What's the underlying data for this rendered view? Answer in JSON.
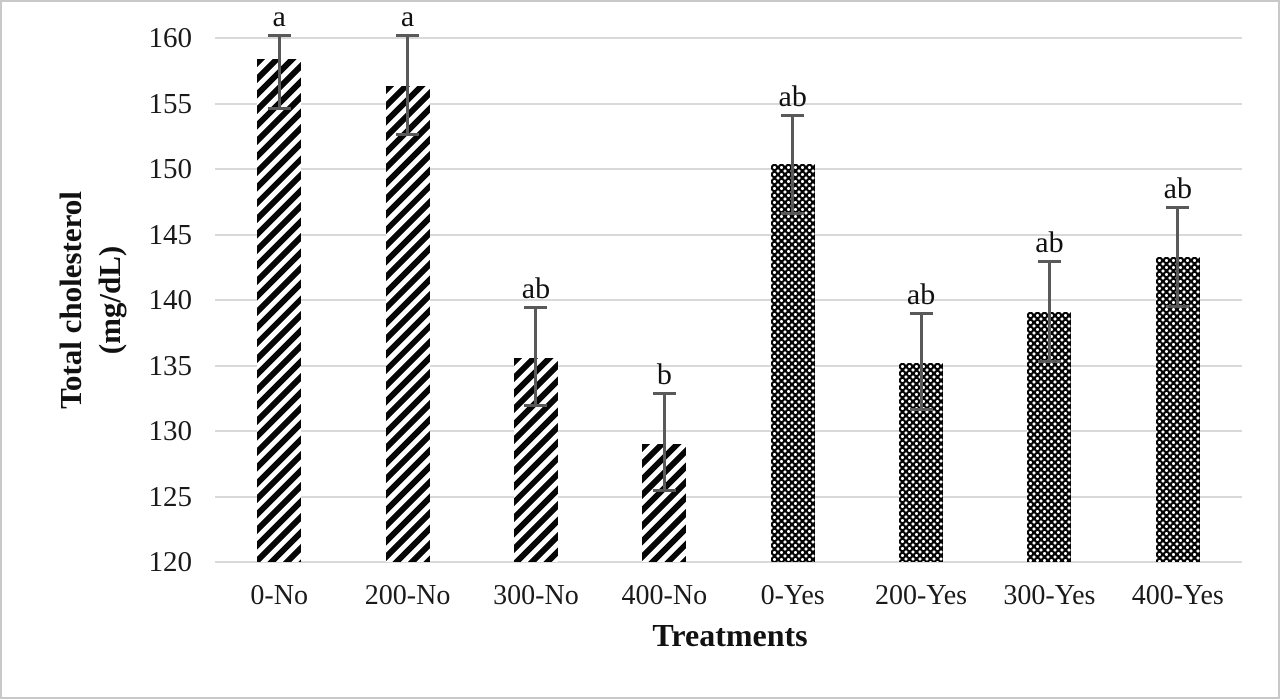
{
  "chart_data": {
    "type": "bar",
    "title": "",
    "xlabel": "Treatments",
    "ylabel": "Total cholesterol (mg/dL)",
    "ylabel_lines": [
      "Total cholesterol",
      "(mg/dL)"
    ],
    "ylim": [
      120,
      160
    ],
    "yticks": [
      120,
      125,
      130,
      135,
      140,
      145,
      150,
      155,
      160
    ],
    "grid": true,
    "legend": "none",
    "categories": [
      "0-No",
      "200-No",
      "300-No",
      "400-No",
      "0-Yes",
      "200-Yes",
      "300-Yes",
      "400-Yes"
    ],
    "values": [
      158.4,
      156.3,
      135.6,
      129.0,
      150.4,
      135.2,
      139.1,
      143.3
    ],
    "error_low": [
      154.6,
      152.6,
      131.9,
      125.4,
      146.6,
      131.6,
      135.3,
      139.5
    ],
    "error_high": [
      160.2,
      160.2,
      139.5,
      132.9,
      154.1,
      139.0,
      143.0,
      147.1
    ],
    "sig_letters": [
      "a",
      "a",
      "ab",
      "b",
      "ab",
      "ab",
      "ab",
      "ab"
    ],
    "bar_patterns": [
      "diagonal-stripe",
      "diagonal-stripe",
      "diagonal-stripe",
      "diagonal-stripe",
      "dots",
      "dots",
      "dots",
      "dots"
    ],
    "groups": [
      {
        "name": "No",
        "pattern": "diagonal-stripe"
      },
      {
        "name": "Yes",
        "pattern": "dots"
      }
    ]
  },
  "colors": {
    "bar_fill": "#060606",
    "pattern_background": "#ffffff",
    "error_bar": "#595959",
    "gridline": "#d9d9d9",
    "text": "#1a1a1a",
    "background": "#ffffff",
    "frame_border": "#c8c8c8"
  }
}
